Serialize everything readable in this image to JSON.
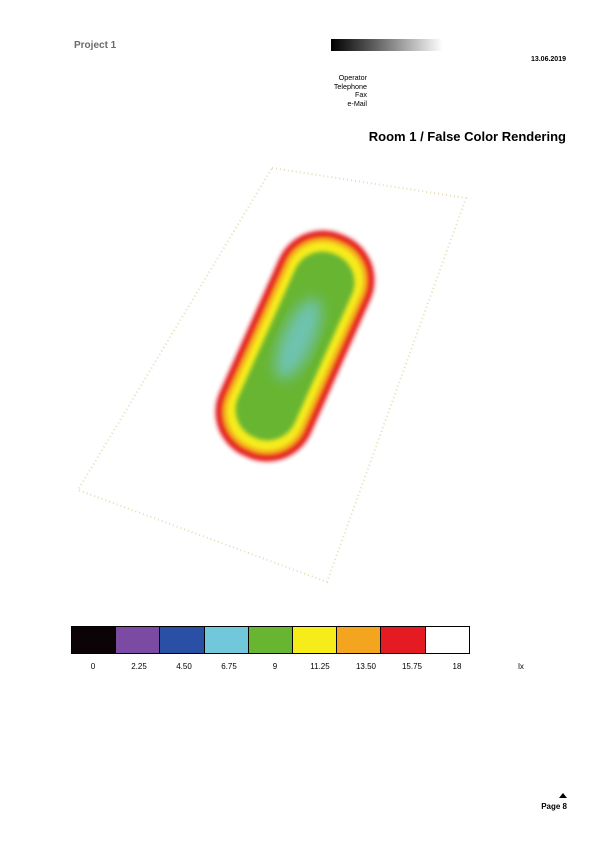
{
  "header": {
    "project": "Project 1",
    "date": "13.06.2019",
    "contact": [
      "Operator",
      "Telephone",
      "Fax",
      "e-Mail"
    ]
  },
  "title": {
    "room": "Room 1",
    "separator": " / ",
    "rendering": "False Color Rendering"
  },
  "legend": {
    "colors": [
      "#0b0305",
      "#7b4aa2",
      "#2950a4",
      "#71c8da",
      "#67b530",
      "#f5ec1a",
      "#f4a51f",
      "#e41b23",
      "#ffffff"
    ],
    "labels": [
      "0",
      "2.25",
      "4.50",
      "6.75",
      "9",
      "11.25",
      "13.50",
      "15.75",
      "18"
    ],
    "unit": "lx"
  },
  "footer": {
    "page": "Page 8"
  }
}
